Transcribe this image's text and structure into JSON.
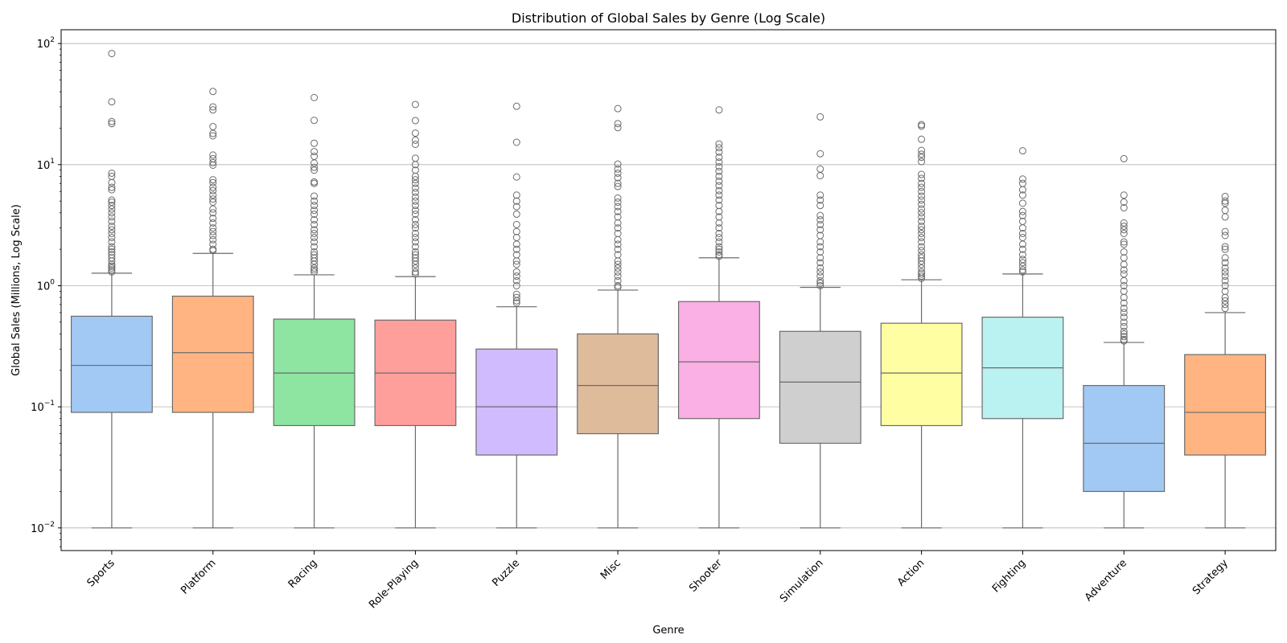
{
  "chart_data": {
    "type": "box",
    "title": "Distribution of Global Sales by Genre (Log Scale)",
    "xlabel": "Genre",
    "ylabel": "Global Sales (Millions, Log Scale)",
    "yscale": "log",
    "ylim": [
      0.0065,
      130
    ],
    "yticks": [
      {
        "value": 0.01,
        "base": "10",
        "exp": "−2"
      },
      {
        "value": 0.1,
        "base": "10",
        "exp": "−1"
      },
      {
        "value": 1,
        "base": "10",
        "exp": "0"
      },
      {
        "value": 10,
        "base": "10",
        "exp": "1"
      },
      {
        "value": 100,
        "base": "10",
        "exp": "2"
      }
    ],
    "grid": "y-major",
    "categories": [
      "Sports",
      "Platform",
      "Racing",
      "Role-Playing",
      "Puzzle",
      "Misc",
      "Shooter",
      "Simulation",
      "Action",
      "Fighting",
      "Adventure",
      "Strategy"
    ],
    "boxes": [
      {
        "genre": "Sports",
        "color": "#a1c9f4",
        "min": 0.01,
        "q1": 0.09,
        "median": 0.22,
        "q3": 0.56,
        "max": 1.27,
        "outliers": [
          82.7,
          33.0,
          22.7,
          21.8,
          8.5,
          8.0,
          7.1,
          6.5,
          6.2,
          5.1,
          4.9,
          4.6,
          4.3,
          4.0,
          3.7,
          3.4,
          3.1,
          2.9,
          2.7,
          2.5,
          2.3,
          2.1,
          2.0,
          1.9,
          1.8,
          1.7,
          1.6,
          1.5,
          1.45,
          1.4,
          1.35,
          1.3
        ]
      },
      {
        "genre": "Platform",
        "color": "#ffb482",
        "min": 0.01,
        "q1": 0.09,
        "median": 0.28,
        "q3": 0.82,
        "max": 1.85,
        "outliers": [
          40.2,
          30.0,
          28.3,
          20.6,
          18.1,
          17.3,
          12.0,
          11.2,
          10.4,
          9.9,
          7.5,
          7.1,
          6.5,
          6.1,
          5.6,
          5.2,
          4.9,
          4.3,
          4.0,
          3.6,
          3.3,
          3.0,
          2.8,
          2.6,
          2.4,
          2.2,
          2.0,
          1.95
        ]
      },
      {
        "genre": "Racing",
        "color": "#8de5a1",
        "min": 0.01,
        "q1": 0.07,
        "median": 0.19,
        "q3": 0.53,
        "max": 1.23,
        "outliers": [
          35.8,
          23.2,
          15.0,
          12.8,
          11.7,
          10.3,
          9.5,
          9.0,
          7.2,
          7.0,
          5.5,
          5.0,
          4.6,
          4.2,
          3.9,
          3.5,
          3.2,
          2.9,
          2.7,
          2.5,
          2.3,
          2.1,
          1.9,
          1.8,
          1.7,
          1.6,
          1.5,
          1.4,
          1.35,
          1.3
        ]
      },
      {
        "genre": "Role-Playing",
        "color": "#ff9f9b",
        "min": 0.01,
        "q1": 0.07,
        "median": 0.19,
        "q3": 0.52,
        "max": 1.19,
        "outliers": [
          31.4,
          23.1,
          18.2,
          15.9,
          14.7,
          11.3,
          10.0,
          9.0,
          8.0,
          7.5,
          7.0,
          6.4,
          5.9,
          5.4,
          5.0,
          4.6,
          4.2,
          3.9,
          3.5,
          3.2,
          3.0,
          2.7,
          2.5,
          2.3,
          2.1,
          1.9,
          1.8,
          1.7,
          1.6,
          1.5,
          1.4,
          1.3,
          1.25
        ]
      },
      {
        "genre": "Puzzle",
        "color": "#d0bbff",
        "min": 0.01,
        "q1": 0.04,
        "median": 0.1,
        "q3": 0.3,
        "max": 0.67,
        "outliers": [
          30.3,
          15.3,
          7.9,
          5.6,
          5.0,
          4.5,
          3.9,
          3.2,
          2.8,
          2.5,
          2.2,
          2.0,
          1.8,
          1.6,
          1.5,
          1.3,
          1.2,
          1.1,
          1.0,
          0.85,
          0.8,
          0.75,
          0.72
        ]
      },
      {
        "genre": "Misc",
        "color": "#debb9b",
        "min": 0.01,
        "q1": 0.06,
        "median": 0.15,
        "q3": 0.4,
        "max": 0.92,
        "outliers": [
          29.0,
          21.8,
          20.2,
          10.1,
          9.2,
          8.5,
          7.8,
          7.0,
          6.6,
          5.3,
          4.9,
          4.5,
          4.1,
          3.7,
          3.3,
          3.0,
          2.7,
          2.4,
          2.2,
          2.0,
          1.8,
          1.6,
          1.5,
          1.4,
          1.3,
          1.2,
          1.1,
          1.0,
          0.97
        ]
      },
      {
        "genre": "Shooter",
        "color": "#fab0e4",
        "min": 0.01,
        "q1": 0.08,
        "median": 0.235,
        "q3": 0.74,
        "max": 1.7,
        "outliers": [
          28.3,
          14.8,
          13.8,
          12.7,
          11.5,
          10.5,
          9.6,
          8.8,
          8.0,
          7.3,
          6.7,
          6.1,
          5.6,
          5.1,
          4.6,
          4.1,
          3.7,
          3.3,
          3.0,
          2.7,
          2.5,
          2.3,
          2.1,
          2.0,
          1.9,
          1.8,
          1.75
        ]
      },
      {
        "genre": "Simulation",
        "color": "#cfcfcf",
        "min": 0.01,
        "q1": 0.05,
        "median": 0.16,
        "q3": 0.42,
        "max": 0.97,
        "outliers": [
          24.8,
          12.3,
          9.2,
          8.1,
          5.6,
          5.1,
          4.6,
          3.8,
          3.5,
          3.2,
          2.9,
          2.6,
          2.3,
          2.1,
          1.9,
          1.7,
          1.55,
          1.4,
          1.3,
          1.2,
          1.1,
          1.05,
          1.0
        ]
      },
      {
        "genre": "Action",
        "color": "#fffea3",
        "min": 0.01,
        "q1": 0.07,
        "median": 0.19,
        "q3": 0.49,
        "max": 1.12,
        "outliers": [
          21.4,
          20.8,
          16.2,
          13.1,
          12.2,
          11.5,
          10.6,
          8.3,
          7.7,
          7.0,
          6.5,
          6.0,
          5.5,
          5.1,
          4.7,
          4.3,
          4.0,
          3.7,
          3.4,
          3.1,
          2.9,
          2.7,
          2.5,
          2.3,
          2.1,
          1.95,
          1.8,
          1.7,
          1.6,
          1.5,
          1.4,
          1.3,
          1.25,
          1.2,
          1.15
        ]
      },
      {
        "genre": "Fighting",
        "color": "#b9f2f0",
        "min": 0.01,
        "q1": 0.08,
        "median": 0.21,
        "q3": 0.55,
        "max": 1.25,
        "outliers": [
          13.0,
          7.6,
          7.0,
          6.2,
          5.6,
          4.8,
          4.1,
          3.8,
          3.4,
          3.0,
          2.7,
          2.5,
          2.2,
          2.0,
          1.8,
          1.65,
          1.55,
          1.45,
          1.35,
          1.3
        ]
      },
      {
        "genre": "Adventure",
        "color": "#a1c9f4",
        "min": 0.01,
        "q1": 0.02,
        "median": 0.05,
        "q3": 0.15,
        "max": 0.34,
        "outliers": [
          11.2,
          5.6,
          4.9,
          4.4,
          3.3,
          3.1,
          2.9,
          2.7,
          2.3,
          2.2,
          1.9,
          1.7,
          1.5,
          1.35,
          1.25,
          1.1,
          1.0,
          0.9,
          0.8,
          0.72,
          0.65,
          0.6,
          0.55,
          0.5,
          0.46,
          0.42,
          0.4,
          0.38,
          0.36,
          0.35
        ]
      },
      {
        "genre": "Strategy",
        "color": "#ffb482",
        "min": 0.01,
        "q1": 0.04,
        "median": 0.09,
        "q3": 0.27,
        "max": 0.6,
        "outliers": [
          5.45,
          5.0,
          4.8,
          4.2,
          3.7,
          2.8,
          2.6,
          2.1,
          2.0,
          1.7,
          1.55,
          1.4,
          1.3,
          1.2,
          1.1,
          1.0,
          0.9,
          0.8,
          0.75,
          0.7,
          0.65
        ]
      }
    ]
  }
}
